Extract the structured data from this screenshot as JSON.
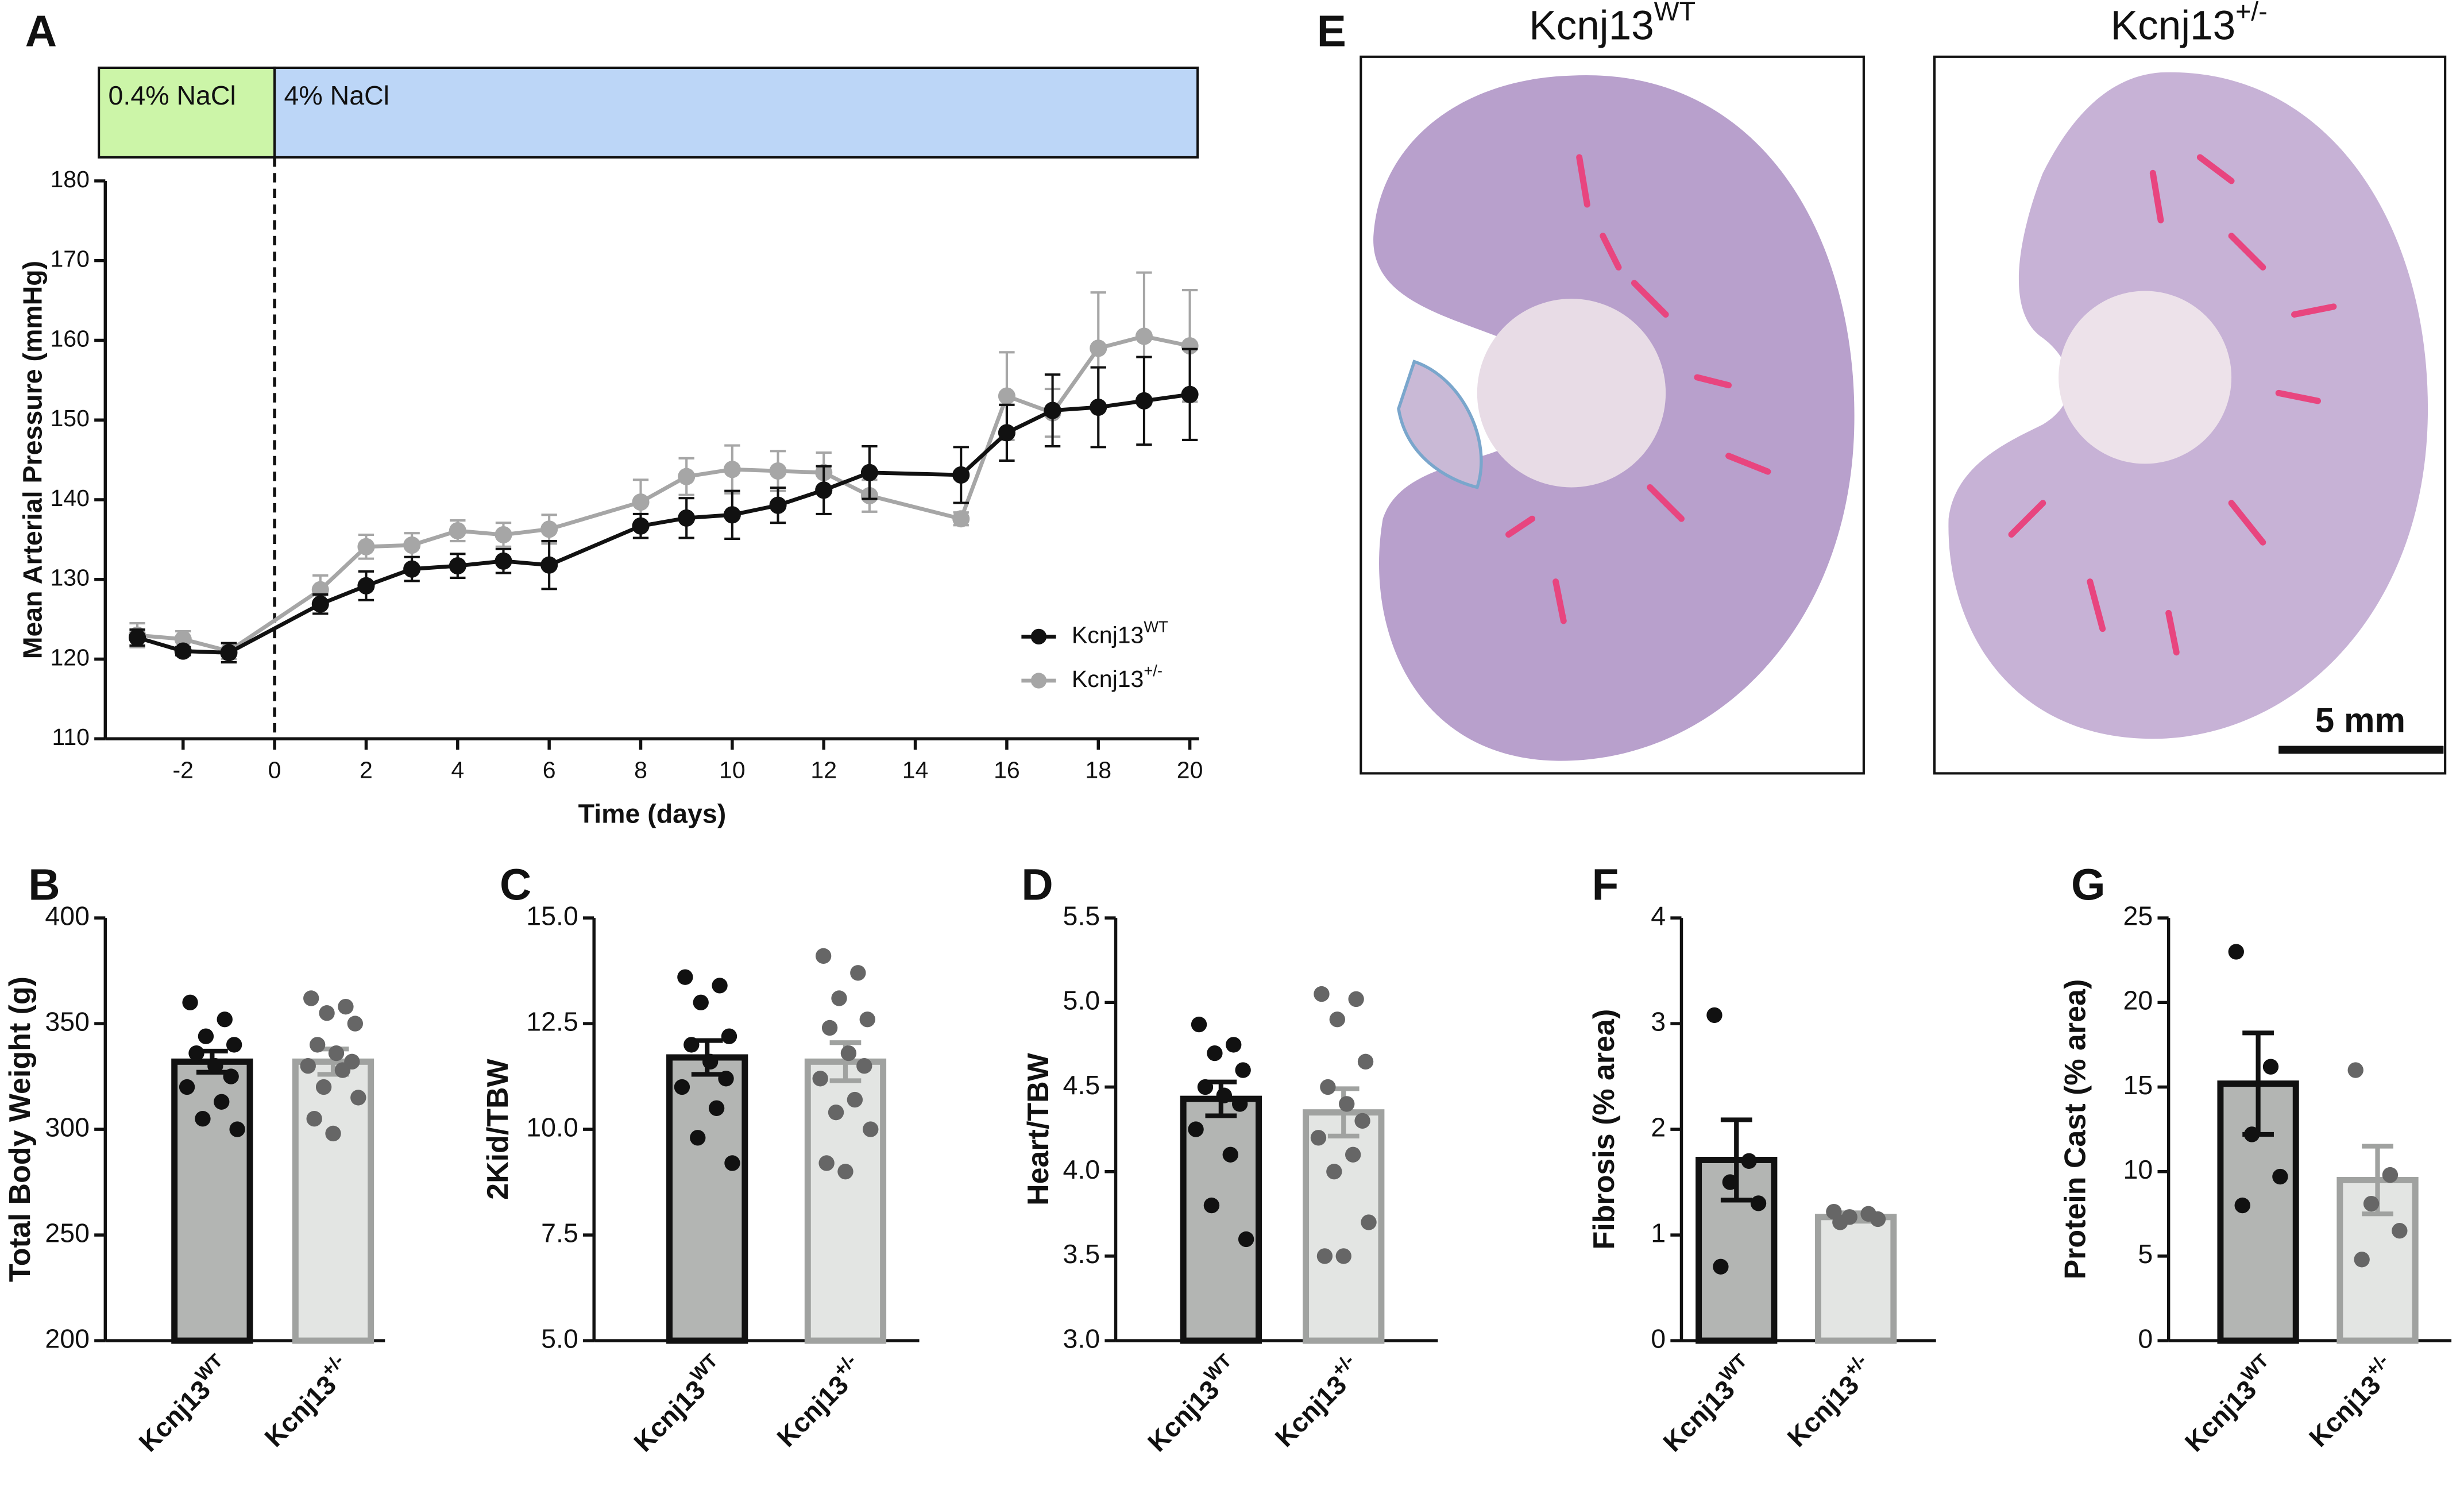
{
  "chart_data": [
    {
      "panel": "A",
      "type": "line",
      "x_label": "Time (days)",
      "y_label": "Mean Arterial Pressure (mmHg)",
      "x": [
        -3,
        -2,
        -1,
        1,
        2,
        3,
        4,
        5,
        6,
        8,
        9,
        10,
        11,
        12,
        13,
        15,
        16,
        17,
        18,
        19,
        20
      ],
      "series": [
        {
          "name": "Kcnj13",
          "name_sup": "WT",
          "color": "#111111",
          "values": [
            122.7,
            121.0,
            120.8,
            126.9,
            129.2,
            131.3,
            131.7,
            132.3,
            131.8,
            136.7,
            137.7,
            138.1,
            139.3,
            141.2,
            143.4,
            143.1,
            148.4,
            151.2,
            151.6,
            152.4,
            153.2
          ],
          "errors": [
            1.0,
            0.5,
            1.2,
            1.2,
            1.8,
            1.5,
            1.5,
            1.5,
            3.0,
            1.5,
            2.5,
            3.0,
            2.2,
            3.0,
            3.3,
            3.5,
            3.5,
            4.5,
            5.0,
            5.5,
            5.7
          ]
        },
        {
          "name": "Kcnj13",
          "name_sup": "+/-",
          "color": "#a6a6a6",
          "values": [
            123.0,
            122.5,
            121.0,
            128.7,
            134.1,
            134.3,
            136.1,
            135.6,
            136.3,
            139.7,
            142.9,
            143.8,
            143.6,
            143.4,
            140.5,
            137.6,
            153.0,
            150.9,
            159.0,
            160.5,
            159.3
          ],
          "errors": [
            1.5,
            1.0,
            1.0,
            1.8,
            1.5,
            1.5,
            1.3,
            1.5,
            1.8,
            2.8,
            2.3,
            3.0,
            2.5,
            2.5,
            2.0,
            0.8,
            5.5,
            3.0,
            7.0,
            8.0,
            7.0
          ]
        }
      ],
      "xlim": [
        -3.7,
        20.2
      ],
      "ylim": [
        110,
        180
      ],
      "xticks": [
        -2,
        0,
        2,
        4,
        6,
        8,
        10,
        12,
        14,
        16,
        18,
        20
      ],
      "yticks": [
        110,
        120,
        130,
        140,
        150,
        160,
        170,
        180
      ],
      "phases": [
        {
          "label": "0.4% NaCl",
          "start": -3.84,
          "end": 0,
          "color": "#ccf5a8"
        },
        {
          "label": "4% NaCl",
          "start": 0,
          "end": 20.17,
          "color": "#bcd6f7"
        }
      ],
      "legend": "lower right"
    },
    {
      "panel": "B",
      "type": "bar",
      "y_label": "Total Body Weight (g)",
      "categories": [
        {
          "label": "Kcnj13",
          "sup": "WT"
        },
        {
          "label": "Kcnj13",
          "sup": "+/-"
        }
      ],
      "values": [
        332,
        332
      ],
      "errors": [
        5,
        6
      ],
      "points": [
        [
          360,
          352,
          344,
          340,
          336,
          330,
          325,
          320,
          313,
          305,
          300
        ],
        [
          362,
          358,
          355,
          350,
          340,
          336,
          332,
          330,
          328,
          320,
          315,
          305,
          298
        ]
      ],
      "colors": [
        "#b3b5b3",
        "#e3e5e3"
      ],
      "edge_colors": [
        "#111111",
        "#a0a2a0"
      ],
      "point_colors": [
        "#111111",
        "#666666"
      ],
      "ylim": [
        200,
        400
      ],
      "yticks": [
        200,
        250,
        300,
        350,
        400
      ]
    },
    {
      "panel": "C",
      "type": "bar",
      "y_label": "2Kid/TBW",
      "categories": [
        {
          "label": "Kcnj13",
          "sup": "WT"
        },
        {
          "label": "Kcnj13",
          "sup": "+/-"
        }
      ],
      "values": [
        11.7,
        11.6
      ],
      "errors": [
        0.4,
        0.45
      ],
      "points": [
        [
          13.6,
          13.4,
          13.0,
          12.2,
          12.0,
          11.6,
          11.2,
          11.0,
          10.5,
          9.8,
          9.2
        ],
        [
          14.1,
          13.7,
          13.1,
          12.6,
          12.4,
          11.8,
          11.5,
          11.2,
          10.7,
          10.4,
          10.0,
          9.2,
          9.0
        ]
      ],
      "colors": [
        "#b3b5b3",
        "#e3e5e3"
      ],
      "edge_colors": [
        "#111111",
        "#a0a2a0"
      ],
      "point_colors": [
        "#111111",
        "#666666"
      ],
      "ylim": [
        5,
        15
      ],
      "yticks": [
        {
          "value": 5,
          "label": "5.0"
        },
        7.5,
        {
          "value": 10,
          "label": "10.0"
        },
        12.5,
        {
          "value": 15,
          "label": "15.0"
        }
      ]
    },
    {
      "panel": "D",
      "type": "bar",
      "y_label": "Heart/TBW",
      "categories": [
        {
          "label": "Kcnj13",
          "sup": "WT"
        },
        {
          "label": "Kcnj13",
          "sup": "+/-"
        }
      ],
      "values": [
        4.43,
        4.35
      ],
      "errors": [
        0.1,
        0.14
      ],
      "points": [
        [
          4.87,
          4.75,
          4.7,
          4.6,
          4.5,
          4.45,
          4.4,
          4.25,
          4.1,
          3.8,
          3.6
        ],
        [
          5.05,
          5.02,
          4.9,
          4.65,
          4.5,
          4.4,
          4.3,
          4.2,
          4.1,
          4.0,
          3.7,
          3.5,
          3.5
        ]
      ],
      "colors": [
        "#b3b5b3",
        "#e3e5e3"
      ],
      "edge_colors": [
        "#111111",
        "#a0a2a0"
      ],
      "point_colors": [
        "#111111",
        "#666666"
      ],
      "ylim": [
        3,
        5.5
      ],
      "yticks": [
        {
          "value": 3,
          "label": "3.0"
        },
        3.5,
        {
          "value": 4,
          "label": "4.0"
        },
        4.5,
        {
          "value": 5,
          "label": "5.0"
        },
        5.5
      ]
    },
    {
      "panel": "F",
      "type": "bar",
      "y_label": "Fibrosis (% area)",
      "categories": [
        {
          "label": "Kcnj13",
          "sup": "WT"
        },
        {
          "label": "Kcnj13",
          "sup": "+/-"
        }
      ],
      "values": [
        1.71,
        1.17
      ],
      "errors": [
        0.38,
        0.04
      ],
      "points": [
        [
          3.08,
          1.7,
          1.5,
          1.3,
          0.7
        ],
        [
          1.22,
          1.2,
          1.17,
          1.15,
          1.12
        ]
      ],
      "colors": [
        "#b3b5b3",
        "#e3e5e3"
      ],
      "edge_colors": [
        "#111111",
        "#a0a2a0"
      ],
      "point_colors": [
        "#111111",
        "#666666"
      ],
      "ylim": [
        0,
        4
      ],
      "yticks": [
        0,
        1,
        2,
        3,
        4
      ]
    },
    {
      "panel": "G",
      "type": "bar",
      "y_label": "Protein Cast (% area)",
      "categories": [
        {
          "label": "Kcnj13",
          "sup": "WT"
        },
        {
          "label": "Kcnj13",
          "sup": "+/-"
        }
      ],
      "values": [
        15.2,
        9.5
      ],
      "errors": [
        3.0,
        2.0
      ],
      "points": [
        [
          23,
          16.2,
          12.2,
          9.7,
          8.0
        ],
        [
          16,
          9.8,
          8.1,
          6.5,
          4.8
        ]
      ],
      "colors": [
        "#b3b5b3",
        "#e3e5e3"
      ],
      "edge_colors": [
        "#111111",
        "#a0a2a0"
      ],
      "point_colors": [
        "#111111",
        "#666666"
      ],
      "ylim": [
        0,
        25
      ],
      "yticks": [
        0,
        5,
        10,
        15,
        20,
        25
      ]
    }
  ],
  "image_panel": {
    "panel": "E",
    "images": [
      {
        "title": "Kcnj13",
        "title_sup": "WT"
      },
      {
        "title": "Kcnj13",
        "title_sup": "+/-"
      }
    ],
    "scale_bar": "5 mm"
  }
}
